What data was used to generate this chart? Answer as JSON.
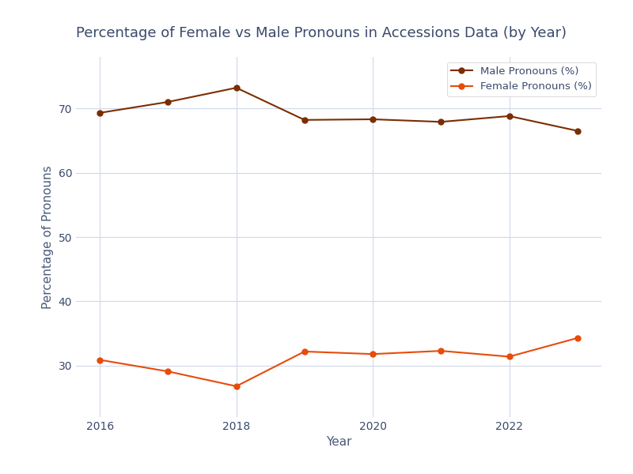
{
  "title": "Percentage of Female vs Male Pronouns in Accessions Data (by Year)",
  "xlabel": "Year",
  "ylabel": "Percentage of Pronouns",
  "years": [
    2016,
    2017,
    2018,
    2019,
    2020,
    2021,
    2022,
    2023
  ],
  "male_values": [
    69.3,
    71.0,
    73.2,
    68.2,
    68.3,
    67.9,
    68.8,
    66.5
  ],
  "female_values": [
    30.9,
    29.1,
    26.8,
    32.2,
    31.8,
    32.3,
    31.4,
    34.3
  ],
  "male_color": "#7B2D00",
  "female_color": "#E84B0A",
  "male_label": "Male Pronouns (%)",
  "female_label": "Female Pronouns (%)",
  "background_color": "#ffffff",
  "grid_color": "#d0d8e8",
  "title_color": "#3a4a6b",
  "axis_label_color": "#4a5a7b",
  "tick_color": "#3a4a6b",
  "ylim": [
    22,
    78
  ],
  "yticks": [
    30,
    40,
    50,
    60,
    70
  ],
  "xticks": [
    2016,
    2018,
    2020,
    2022
  ],
  "title_fontsize": 13,
  "axis_label_fontsize": 11,
  "tick_fontsize": 10,
  "legend_fontsize": 9.5,
  "line_width": 1.5,
  "marker": "o",
  "marker_size": 5
}
